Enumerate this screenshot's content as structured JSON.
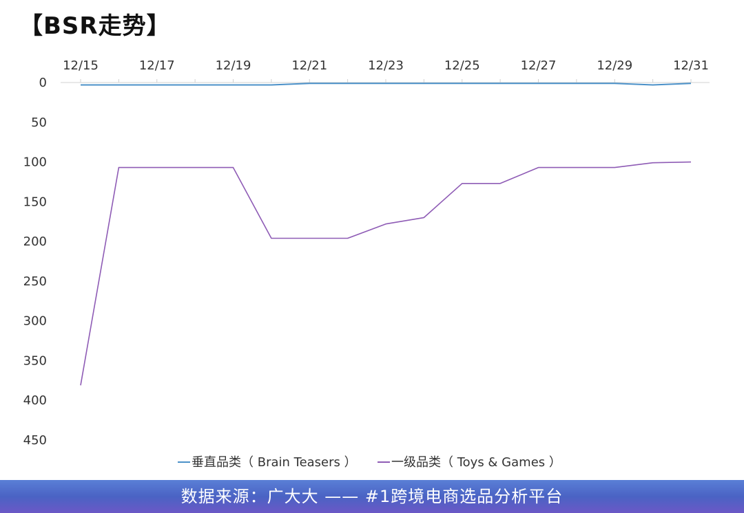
{
  "title": "【BSR走势】",
  "footer": "数据来源：广大大 —— #1跨境电商选品分析平台",
  "chart_data": {
    "type": "line",
    "x": [
      "12/15",
      "12/16",
      "12/17",
      "12/18",
      "12/19",
      "12/20",
      "12/21",
      "12/22",
      "12/23",
      "12/24",
      "12/25",
      "12/26",
      "12/27",
      "12/28",
      "12/29",
      "12/30",
      "12/31"
    ],
    "x_tick_labels": [
      "12/15",
      "12/17",
      "12/19",
      "12/21",
      "12/23",
      "12/25",
      "12/27",
      "12/29",
      "12/31"
    ],
    "y_tick_labels": [
      "0",
      "50",
      "100",
      "150",
      "200",
      "250",
      "300",
      "350",
      "400",
      "450"
    ],
    "ylim": [
      0,
      450
    ],
    "y_reversed": true,
    "x_axis_position": "top",
    "grid": false,
    "legend_position": "bottom",
    "series": [
      {
        "name": "垂直品类（ Brain Teasers ）",
        "color": "#4a90c8",
        "values": [
          3,
          3,
          3,
          3,
          3,
          3,
          1,
          1,
          1,
          1,
          1,
          1,
          1,
          1,
          1,
          3,
          1
        ]
      },
      {
        "name": "一级品类（ Toys & Games ）",
        "color": "#8e5bb5",
        "values": [
          381,
          107,
          107,
          107,
          107,
          196,
          196,
          196,
          178,
          170,
          127,
          127,
          107,
          107,
          107,
          101,
          100
        ]
      }
    ]
  }
}
